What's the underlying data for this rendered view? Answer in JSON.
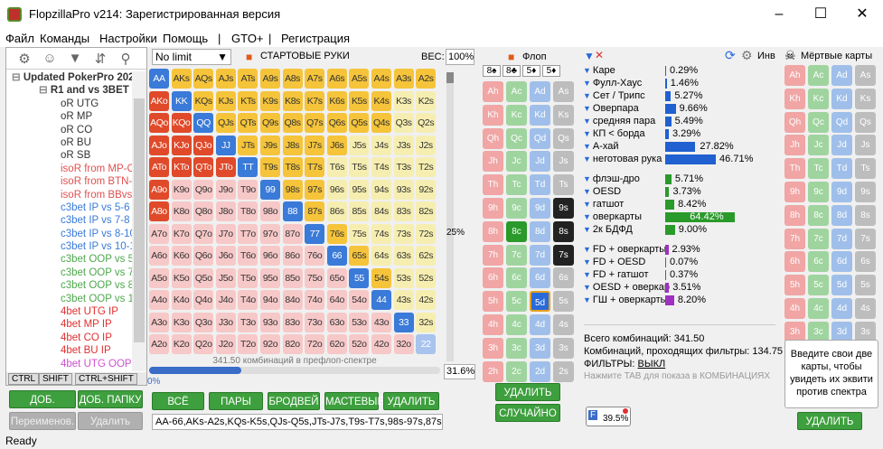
{
  "app": {
    "title": "FlopzillaPro v214: Зарегистрированная версия"
  },
  "menu": [
    "Файл",
    "Команды",
    "Настройки",
    "Помощь",
    "|",
    "GTO+",
    "|",
    "Регистрация"
  ],
  "tree": [
    {
      "label": "Updated PokerPro 2021",
      "color": "#333",
      "bold": true,
      "indent": 0
    },
    {
      "label": "R1 and vs 3BET",
      "color": "#333",
      "bold": true,
      "indent": 1
    },
    {
      "label": "oR UTG",
      "color": "#333",
      "indent": 2
    },
    {
      "label": "oR MP",
      "color": "#333",
      "indent": 2
    },
    {
      "label": "oR CO",
      "color": "#333",
      "indent": 2
    },
    {
      "label": "oR BU",
      "color": "#333",
      "indent": 2
    },
    {
      "label": "oR SB",
      "color": "#333",
      "indent": 2
    },
    {
      "label": "isoR from MP-C",
      "color": "#e05050",
      "indent": 2
    },
    {
      "label": "isoR from BTN-",
      "color": "#e05050",
      "indent": 2
    },
    {
      "label": "isoR from BBvs",
      "color": "#e05050",
      "indent": 2
    },
    {
      "label": "c3bet IP vs 5-6",
      "color": "#3a7ad8",
      "indent": 2
    },
    {
      "label": "c3bet IP vs 7-8",
      "color": "#3a7ad8",
      "indent": 2
    },
    {
      "label": "c3bet IP vs 8-10",
      "color": "#3a7ad8",
      "indent": 2
    },
    {
      "label": "c3bet IP vs 10-1",
      "color": "#3a7ad8",
      "indent": 2
    },
    {
      "label": "c3bet OOP vs 5",
      "color": "#4ea84e",
      "indent": 2
    },
    {
      "label": "c3bet OOP vs 7",
      "color": "#4ea84e",
      "indent": 2
    },
    {
      "label": "c3bet OOP vs 8",
      "color": "#4ea84e",
      "indent": 2
    },
    {
      "label": "c3bet OOP vs 1",
      "color": "#4ea84e",
      "indent": 2
    },
    {
      "label": "4bet UTG IP",
      "color": "#e03030",
      "indent": 2
    },
    {
      "label": "4bet MP IP",
      "color": "#e03030",
      "indent": 2
    },
    {
      "label": "4bet CO IP",
      "color": "#e03030",
      "indent": 2
    },
    {
      "label": "4bet BU IP",
      "color": "#e03030",
      "indent": 2
    },
    {
      "label": "4bet UTG OOP",
      "color": "#d050d0",
      "indent": 2
    }
  ],
  "left_tabs": [
    "CTRL",
    "SHIFT",
    "CTRL+SHIFT"
  ],
  "left_buttons": {
    "add_spectrum": "ДОБ. СПЕКТР",
    "add_folder": "ДОБ. ПАПКУ",
    "rename": "Переименов.",
    "delete": "Удалить"
  },
  "range": {
    "dropdown": "No limit",
    "title": "СТАРТОВЫЕ РУКИ",
    "weight_label": "ВЕС:",
    "weight_value": "100%",
    "combos_note": "341.50 комбинаций в префлоп-спектре",
    "pct_zero": "0%",
    "pct_value": "31.6%",
    "slider_pct": "25%",
    "range_text": "AA-66,AKs-A2s,KQs-K5s,QJs-Q5s,JTs-J7s,T9s-T7s,98s-97s,87s,AKo-"
  },
  "range_buttons": [
    "ВСЁ",
    "ПАРЫ",
    "БРОДВЕЙ",
    "МАСТЕВЫЕ",
    "УДАЛИТЬ"
  ],
  "flop": {
    "title": "Флоп",
    "delete": "УДАЛИТЬ",
    "random": "СЛУЧАЙНО",
    "suits": [
      "8♠",
      "8♣",
      "5♦",
      "5♦"
    ]
  },
  "stats": {
    "rows": [
      {
        "label": "Каре",
        "value": "0.29%",
        "pct": 0.29,
        "color": "#2060d0"
      },
      {
        "label": "Фулл-Хаус",
        "value": "1.46%",
        "pct": 1.46,
        "color": "#2060d0"
      },
      {
        "label": "Сет / Трипс",
        "value": "5.27%",
        "pct": 5.27,
        "color": "#2060d0"
      },
      {
        "label": "Оверпара",
        "value": "9.66%",
        "pct": 9.66,
        "color": "#2060d0"
      },
      {
        "label": "средняя пара",
        "value": "5.49%",
        "pct": 5.49,
        "color": "#2060d0"
      },
      {
        "label": "КП < борда",
        "value": "3.29%",
        "pct": 3.29,
        "color": "#2060d0"
      },
      {
        "label": "А-хай",
        "value": "27.82%",
        "pct": 27.82,
        "color": "#2060d0"
      },
      {
        "label": "неготовая рука",
        "value": "46.71%",
        "pct": 46.71,
        "color": "#2060d0"
      },
      {
        "label": "флэш-дро",
        "value": "5.71%",
        "pct": 5.71,
        "color": "#2a9a2a"
      },
      {
        "label": "OESD",
        "value": "3.73%",
        "pct": 3.73,
        "color": "#2a9a2a"
      },
      {
        "label": "гатшот",
        "value": "8.42%",
        "pct": 8.42,
        "color": "#2a9a2a"
      },
      {
        "label": "оверкарты",
        "value": "64.42%",
        "pct": 64.42,
        "color": "#2a9a2a"
      },
      {
        "label": "2к БДФД",
        "value": "9.00%",
        "pct": 9.0,
        "color": "#2a9a2a"
      },
      {
        "label": "FD + оверкарты",
        "value": "2.93%",
        "pct": 2.93,
        "color": "#a030c0"
      },
      {
        "label": "FD + OESD",
        "value": "0.07%",
        "pct": 0.07,
        "color": "#a030c0"
      },
      {
        "label": "FD + гатшот",
        "value": "0.37%",
        "pct": 0.37,
        "color": "#a030c0"
      },
      {
        "label": "OESD + оверкар",
        "value": "3.51%",
        "pct": 3.51,
        "color": "#a030c0"
      },
      {
        "label": "ГШ + оверкарты",
        "value": "8.20%",
        "pct": 8.2,
        "color": "#a030c0"
      }
    ],
    "total": "Всего комбинаций: 341.50",
    "passing": "Комбинаций, проходящих фильтры: 134.75",
    "filters": "ФИЛЬТРЫ: ",
    "filters_val": "ВЫКЛ",
    "tab_hint": "Нажмите TAB для показа в КОМБИНАЦИЯХ",
    "badge": "39.5%"
  },
  "right": {
    "inv": "Инв",
    "dead": "Мёртвые карты",
    "hint": "Введите свои две карты, чтобы увидеть их эквити против спектра",
    "delete": "УДАЛИТЬ"
  },
  "status": "Ready"
}
